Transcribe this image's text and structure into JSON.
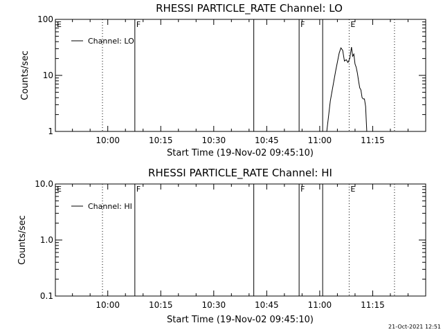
{
  "chart_data": [
    {
      "type": "line",
      "title": "RHESSI PARTICLE_RATE Channel: LO",
      "xlabel": "Start Time (19-Nov-02 09:45:10)",
      "ylabel": "Counts/sec",
      "yscale": "log",
      "xlim": [
        "09:45:10",
        "11:30:00"
      ],
      "ylim": [
        1,
        100
      ],
      "yticks": [
        "1",
        "10",
        "100"
      ],
      "xticks": [
        "10:00",
        "10:15",
        "10:30",
        "10:45",
        "11:00",
        "11:15"
      ],
      "legend": "top-left",
      "series": [
        {
          "name": "Channel: LO",
          "x": [
            "11:02:00",
            "11:03:00",
            "11:04:30",
            "11:05:30",
            "11:06:00",
            "11:06:30",
            "11:07:00",
            "11:07:30",
            "11:08:00",
            "11:08:30",
            "11:09:00",
            "11:09:20",
            "11:09:40",
            "11:10:00",
            "11:10:20",
            "11:10:40",
            "11:11:00",
            "11:11:20",
            "11:11:40",
            "11:12:00",
            "11:12:20",
            "11:12:40",
            "11:13:00",
            "11:13:10",
            "11:13:20"
          ],
          "values": [
            1.0,
            3.5,
            12,
            25,
            31,
            28,
            18,
            19,
            17,
            20,
            32,
            22,
            24,
            16,
            14,
            11,
            8,
            6,
            5.5,
            4,
            3.8,
            3.8,
            2.8,
            1.6,
            1.0
          ]
        }
      ],
      "markers": [
        {
          "label": "E",
          "time": "09:45:10",
          "style": "dotted"
        },
        {
          "label": "",
          "time": "09:58:30",
          "style": "dotted"
        },
        {
          "label": "F",
          "time": "10:07:40",
          "style": "solid"
        },
        {
          "label": "",
          "time": "10:41:20",
          "style": "solid"
        },
        {
          "label": "F",
          "time": "10:54:10",
          "style": "solid"
        },
        {
          "label": "",
          "time": "11:00:50",
          "style": "solid"
        },
        {
          "label": "E",
          "time": "11:08:20",
          "style": "dotted"
        },
        {
          "label": "",
          "time": "11:21:10",
          "style": "dotted"
        }
      ]
    },
    {
      "type": "line",
      "title": "RHESSI PARTICLE_RATE Channel: HI",
      "xlabel": "Start Time (19-Nov-02 09:45:10)",
      "ylabel": "Counts/sec",
      "yscale": "log",
      "xlim": [
        "09:45:10",
        "11:30:00"
      ],
      "ylim": [
        0.1,
        10
      ],
      "yticks": [
        "0.1",
        "1.0",
        "10.0"
      ],
      "xticks": [
        "10:00",
        "10:15",
        "10:30",
        "10:45",
        "11:00",
        "11:15"
      ],
      "legend": "top-left",
      "series": [
        {
          "name": "Channel: HI",
          "x": [],
          "values": []
        }
      ],
      "markers": [
        {
          "label": "E",
          "time": "09:45:10",
          "style": "dotted"
        },
        {
          "label": "",
          "time": "09:58:30",
          "style": "dotted"
        },
        {
          "label": "F",
          "time": "10:07:40",
          "style": "solid"
        },
        {
          "label": "",
          "time": "10:41:20",
          "style": "solid"
        },
        {
          "label": "F",
          "time": "10:54:10",
          "style": "solid"
        },
        {
          "label": "",
          "time": "11:00:50",
          "style": "solid"
        },
        {
          "label": "E",
          "time": "11:08:20",
          "style": "dotted"
        },
        {
          "label": "",
          "time": "11:21:10",
          "style": "dotted"
        }
      ]
    }
  ],
  "footer": {
    "timestamp": "21-Oct-2021 12:51"
  }
}
